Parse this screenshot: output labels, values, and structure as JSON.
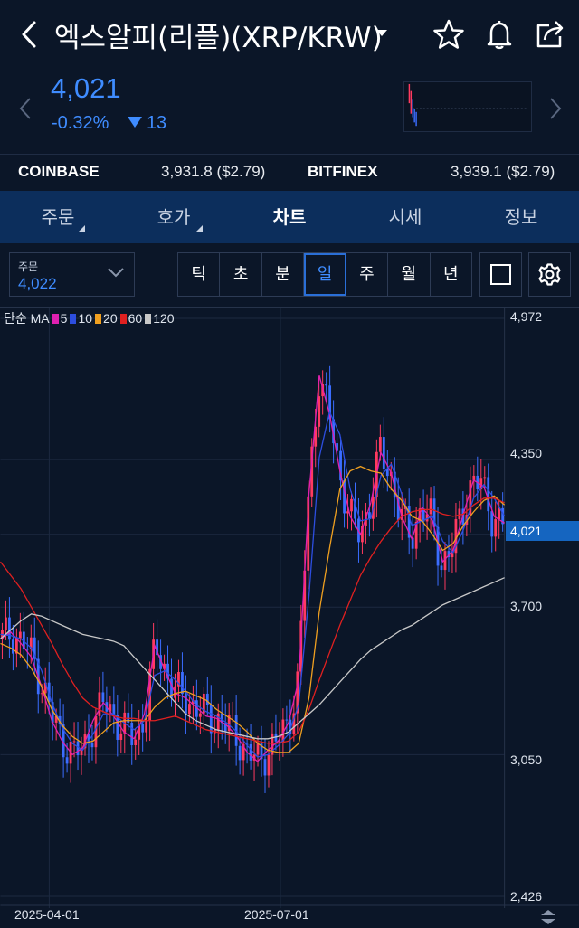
{
  "header": {
    "title": "엑스알피(리플)(XRP/KRW)",
    "back_icon": "chevron-left-icon",
    "dropdown_icon": "caret-down-icon",
    "actions": [
      "star-icon",
      "bell-icon",
      "share-icon"
    ]
  },
  "price": {
    "current": "4,021",
    "change_pct": "-0.32%",
    "change_abs": "13",
    "direction": "down",
    "color": "#3f8cff"
  },
  "exchanges": [
    {
      "name": "COINBASE",
      "value": "3,931.8 ($2.79)"
    },
    {
      "name": "BITFINEX",
      "value": "3,939.1 ($2.79)"
    }
  ],
  "tabs": [
    {
      "label": "주문",
      "active": false,
      "has_menu": true
    },
    {
      "label": "호가",
      "active": false,
      "has_menu": true
    },
    {
      "label": "차트",
      "active": true,
      "has_menu": false
    },
    {
      "label": "시세",
      "active": false,
      "has_menu": false
    },
    {
      "label": "정보",
      "active": false,
      "has_menu": false
    }
  ],
  "order_select": {
    "label": "주문",
    "value": "4,022"
  },
  "periods": [
    {
      "label": "틱",
      "active": false
    },
    {
      "label": "초",
      "active": false
    },
    {
      "label": "분",
      "active": false
    },
    {
      "label": "일",
      "active": true
    },
    {
      "label": "주",
      "active": false
    },
    {
      "label": "월",
      "active": false
    },
    {
      "label": "년",
      "active": false
    }
  ],
  "legend": {
    "prefix": "단순 MA",
    "items": [
      {
        "label": "5",
        "color": "#e020b0"
      },
      {
        "label": "10",
        "color": "#2d4ee0"
      },
      {
        "label": "20",
        "color": "#f0a020"
      },
      {
        "label": "60",
        "color": "#e02020"
      },
      {
        "label": "120",
        "color": "#c8c8c8"
      }
    ]
  },
  "chart_data": {
    "type": "candlestick",
    "y_ticks": [
      "4,972",
      "4,350",
      "4,021",
      "3,700",
      "3,050",
      "2,426"
    ],
    "current_price_label": "4,021",
    "x_ticks": [
      "2025-04-01",
      "2025-07-01"
    ],
    "ylim": [
      2426,
      4972
    ],
    "up_color": "#ff3a60",
    "down_color": "#3b6dff",
    "ma_series": [
      {
        "period": 5,
        "color": "#e020b0",
        "values": [
          3560,
          3590,
          3540,
          3480,
          3350,
          3200,
          3110,
          3050,
          3080,
          3200,
          3280,
          3220,
          3150,
          3120,
          3230,
          3530,
          3420,
          3320,
          3300,
          3260,
          3220,
          3210,
          3180,
          3130,
          3060,
          3020,
          3070,
          3110,
          3190,
          3380,
          4200,
          4720,
          4550,
          4300,
          4100,
          4020,
          4160,
          4380,
          4290,
          4100,
          4000,
          4140,
          4080,
          3900,
          3950,
          4110,
          4260,
          4230,
          4100,
          4070
        ]
      },
      {
        "period": 10,
        "color": "#2d4ee0",
        "values": [
          3580,
          3575,
          3560,
          3520,
          3420,
          3280,
          3170,
          3100,
          3070,
          3140,
          3230,
          3230,
          3190,
          3160,
          3200,
          3400,
          3420,
          3380,
          3330,
          3270,
          3240,
          3220,
          3190,
          3150,
          3090,
          3040,
          3050,
          3090,
          3140,
          3270,
          3750,
          4360,
          4560,
          4460,
          4220,
          4080,
          4090,
          4280,
          4330,
          4200,
          4060,
          4080,
          4100,
          3990,
          3940,
          4040,
          4180,
          4240,
          4180,
          4100
        ]
      },
      {
        "period": 20,
        "color": "#f0a020",
        "values": [
          3540,
          3520,
          3490,
          3430,
          3350,
          3250,
          3180,
          3130,
          3100,
          3110,
          3150,
          3190,
          3200,
          3200,
          3200,
          3260,
          3300,
          3320,
          3330,
          3310,
          3290,
          3250,
          3220,
          3190,
          3150,
          3100,
          3070,
          3060,
          3060,
          3100,
          3300,
          3680,
          3960,
          4220,
          4300,
          4320,
          4300,
          4290,
          4220,
          4170,
          4100,
          4080,
          4020,
          3950,
          3980,
          4060,
          4120,
          4170,
          4190,
          4150
        ]
      },
      {
        "period": 60,
        "color": "#e02020",
        "values": [
          3900,
          3840,
          3780,
          3700,
          3620,
          3540,
          3450,
          3370,
          3300,
          3260,
          3240,
          3220,
          3210,
          3210,
          3200,
          3200,
          3210,
          3220,
          3200,
          3180,
          3160,
          3150,
          3140,
          3130,
          3120,
          3110,
          3100,
          3100,
          3110,
          3150,
          3250,
          3380,
          3500,
          3620,
          3730,
          3840,
          3920,
          3990,
          4050,
          4100,
          4120,
          4130,
          4130,
          4110,
          4100,
          4110,
          4150,
          4180,
          4180,
          4160
        ]
      },
      {
        "period": 120,
        "color": "#c8c8c8",
        "values": [
          3560,
          3600,
          3640,
          3670,
          3660,
          3640,
          3620,
          3600,
          3580,
          3570,
          3560,
          3550,
          3530,
          3480,
          3430,
          3380,
          3330,
          3280,
          3230,
          3200,
          3180,
          3160,
          3150,
          3140,
          3130,
          3120,
          3120,
          3130,
          3150,
          3190,
          3230,
          3270,
          3320,
          3370,
          3420,
          3470,
          3510,
          3540,
          3570,
          3600,
          3620,
          3650,
          3680,
          3710,
          3730,
          3750,
          3770,
          3790,
          3810,
          3830
        ]
      }
    ]
  }
}
